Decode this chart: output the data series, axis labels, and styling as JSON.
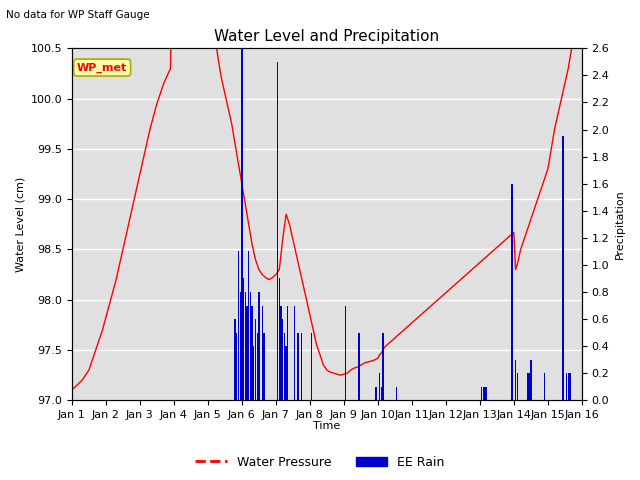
{
  "title": "Water Level and Precipitation",
  "subtitle": "No data for WP Staff Gauge",
  "xlabel": "Time",
  "ylabel_left": "Water Level (cm)",
  "ylabel_right": "Precipitation",
  "legend_label": "WP_met",
  "ylim_left": [
    97.0,
    100.5
  ],
  "ylim_right": [
    0.0,
    2.6
  ],
  "background_color": "#ffffff",
  "plot_bg_color": "#e0e0e0",
  "grid_color": "#ffffff",
  "x_tick_labels": [
    "Jan 1",
    "Jan 2",
    "Jan 3",
    "Jan 4",
    "Jan 5",
    "Jan 6",
    "Jan 7",
    "Jan 8",
    "Jan 9",
    "Jan 10",
    "Jan 11",
    "Jan 12",
    "Jan 13",
    "Jan 14",
    "Jan 15",
    "Jan 16"
  ],
  "water_pressure_x": [
    0.0,
    0.05,
    0.15,
    0.3,
    0.5,
    0.7,
    0.9,
    1.1,
    1.3,
    1.5,
    1.7,
    1.9,
    2.1,
    2.3,
    2.5,
    2.7,
    2.9,
    3.0,
    3.1,
    3.2,
    3.3,
    3.4,
    3.5,
    3.6,
    3.7,
    3.8,
    3.9,
    4.0,
    4.1,
    4.2,
    4.3,
    4.4,
    4.5,
    4.6,
    4.7,
    4.8,
    4.9,
    5.0,
    5.05,
    5.1,
    5.15,
    5.2,
    5.3,
    5.4,
    5.5,
    5.6,
    5.7,
    5.8,
    5.9,
    6.0,
    6.1,
    6.2,
    6.3,
    6.4,
    6.5,
    6.6,
    6.7,
    6.8,
    6.9,
    7.0,
    7.1,
    7.2,
    7.3,
    7.4,
    7.5,
    7.6,
    7.7,
    7.8,
    7.9,
    8.0,
    8.1,
    8.2,
    8.3,
    8.4,
    8.5,
    8.6,
    8.7,
    8.8,
    8.9,
    9.0,
    9.05,
    9.1,
    9.15,
    9.2,
    9.3,
    9.4,
    9.5,
    9.6,
    9.7,
    9.8,
    9.9,
    10.0,
    10.1,
    10.2,
    10.3,
    10.4,
    10.5,
    10.6,
    10.7,
    10.8,
    10.9,
    11.0,
    11.1,
    11.2,
    11.3,
    11.4,
    11.5,
    11.6,
    11.7,
    11.8,
    11.9,
    12.0,
    12.1,
    12.2,
    12.3,
    12.4,
    12.5,
    12.6,
    12.7,
    12.8,
    12.9,
    13.0,
    13.05,
    13.1,
    13.2,
    13.3,
    13.4,
    13.5,
    13.6,
    13.7,
    13.8,
    13.9,
    14.0,
    14.1,
    14.2,
    14.3,
    14.4,
    14.5,
    14.6,
    14.7,
    14.8,
    14.9,
    15.0
  ],
  "water_pressure_y": [
    97.1,
    97.12,
    97.15,
    97.2,
    97.3,
    97.5,
    97.7,
    97.95,
    98.2,
    98.5,
    98.8,
    99.1,
    99.4,
    99.7,
    99.95,
    100.15,
    100.3,
    102.3,
    102.38,
    102.35,
    102.28,
    102.2,
    102.1,
    102.0,
    101.85,
    101.65,
    101.4,
    101.15,
    100.9,
    100.65,
    100.4,
    100.2,
    100.05,
    99.9,
    99.75,
    99.55,
    99.35,
    99.15,
    99.05,
    98.95,
    98.85,
    98.75,
    98.55,
    98.4,
    98.3,
    98.25,
    98.22,
    98.2,
    98.22,
    98.25,
    98.3,
    98.6,
    98.85,
    98.75,
    98.6,
    98.45,
    98.3,
    98.15,
    98.0,
    97.85,
    97.7,
    97.55,
    97.45,
    97.35,
    97.3,
    97.28,
    97.27,
    97.26,
    97.25,
    97.26,
    97.27,
    97.3,
    97.32,
    97.33,
    97.35,
    97.37,
    97.38,
    97.39,
    97.4,
    97.42,
    97.45,
    97.47,
    97.5,
    97.53,
    97.56,
    97.59,
    97.62,
    97.65,
    97.68,
    97.71,
    97.74,
    97.77,
    97.8,
    97.83,
    97.86,
    97.89,
    97.92,
    97.95,
    97.98,
    98.01,
    98.04,
    98.07,
    98.1,
    98.13,
    98.16,
    98.19,
    98.22,
    98.25,
    98.28,
    98.31,
    98.34,
    98.37,
    98.4,
    98.43,
    98.46,
    98.49,
    98.52,
    98.55,
    98.58,
    98.61,
    98.64,
    98.67,
    98.3,
    98.35,
    98.5,
    98.6,
    98.7,
    98.8,
    98.9,
    99.0,
    99.1,
    99.2,
    99.3,
    99.5,
    99.7,
    99.85,
    100.0,
    100.15,
    100.3,
    100.5,
    100.75,
    101.0,
    101.15
  ],
  "rain_times": [
    4.8,
    4.85,
    4.9,
    4.95,
    5.0,
    5.05,
    5.1,
    5.15,
    5.2,
    5.25,
    5.3,
    5.35,
    5.4,
    5.45,
    5.5,
    5.6,
    5.65,
    6.05,
    6.1,
    6.15,
    6.2,
    6.25,
    6.3,
    6.35,
    6.55,
    6.65,
    6.75,
    7.05,
    8.05,
    8.45,
    8.95,
    9.05,
    9.1,
    9.15,
    9.55,
    12.05,
    12.1,
    12.15,
    12.2,
    12.95,
    13.05,
    13.1,
    13.4,
    13.45,
    13.5,
    13.9,
    14.45,
    14.55,
    14.6,
    14.65,
    15.05
  ],
  "rain_values": [
    0.6,
    0.5,
    1.1,
    0.8,
    2.6,
    0.9,
    0.8,
    0.7,
    1.1,
    0.8,
    0.7,
    0.4,
    0.6,
    0.5,
    0.8,
    0.7,
    0.5,
    2.5,
    0.9,
    0.7,
    0.6,
    0.5,
    0.4,
    0.7,
    0.7,
    0.5,
    0.5,
    0.5,
    0.7,
    0.5,
    0.1,
    0.2,
    0.1,
    0.5,
    0.1,
    0.1,
    0.1,
    0.1,
    0.1,
    1.6,
    0.3,
    0.2,
    0.2,
    0.2,
    0.3,
    0.2,
    1.95,
    0.2,
    0.2,
    0.2,
    0.2
  ],
  "water_pressure_color": "#ff0000",
  "rain_color": "#0000cc",
  "legend_box_facecolor": "#ffffaa",
  "legend_box_edgecolor": "#aaaa00"
}
